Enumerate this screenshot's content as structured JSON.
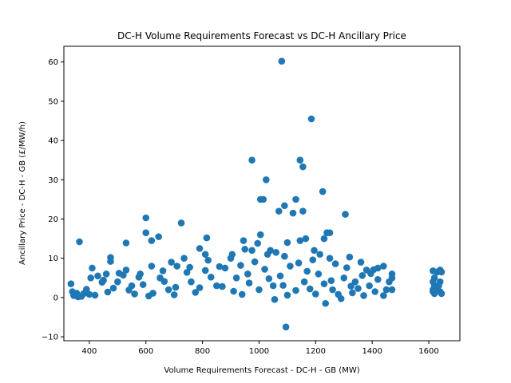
{
  "chart_data": {
    "type": "scatter",
    "title": "DC-H Volume Requirements Forecast vs DC-H Ancillary Price",
    "xlabel": "Volume Requirements Forecast - DC-H - GB (MW)",
    "ylabel": "Ancillary Price - DC-H - GB (£/MW/h)",
    "xlim": [
      310,
      1710
    ],
    "ylim": [
      -11,
      64
    ],
    "x_ticks": [
      400,
      600,
      800,
      1000,
      1200,
      1400,
      1600
    ],
    "y_ticks": [
      -10,
      0,
      10,
      20,
      30,
      40,
      50,
      60
    ],
    "x_tick_labels": [
      "400",
      "600",
      "800",
      "1000",
      "1200",
      "1400",
      "1600"
    ],
    "y_tick_labels": [
      "−10",
      "0",
      "10",
      "20",
      "30",
      "40",
      "50",
      "60"
    ],
    "grid": false,
    "marker_color": "#1f77b4",
    "points": [
      [
        1080,
        60.2
      ],
      [
        1185,
        45.5
      ],
      [
        975,
        35
      ],
      [
        1145,
        35
      ],
      [
        1155,
        33.3
      ],
      [
        1025,
        30
      ],
      [
        1225,
        27
      ],
      [
        1130,
        25
      ],
      [
        1005,
        25
      ],
      [
        1015,
        25
      ],
      [
        1090,
        23.4
      ],
      [
        1070,
        22
      ],
      [
        1155,
        22
      ],
      [
        1120,
        21.5
      ],
      [
        1305,
        21.2
      ],
      [
        600,
        20.3
      ],
      [
        725,
        19
      ],
      [
        1240,
        16.5
      ],
      [
        1250,
        16.5
      ],
      [
        600,
        16.5
      ],
      [
        1005,
        16
      ],
      [
        645,
        15.5
      ],
      [
        815,
        15.2
      ],
      [
        1165,
        15
      ],
      [
        1230,
        15
      ],
      [
        620,
        14.5
      ],
      [
        945,
        14.5
      ],
      [
        1145,
        14.5
      ],
      [
        1100,
        14
      ],
      [
        365,
        14.2
      ],
      [
        530,
        13.9
      ],
      [
        995,
        13.8
      ],
      [
        790,
        12.5
      ],
      [
        950,
        12.3
      ],
      [
        975,
        12
      ],
      [
        1040,
        12
      ],
      [
        1195,
        12
      ],
      [
        1060,
        11.5
      ],
      [
        810,
        11
      ],
      [
        905,
        11
      ],
      [
        1030,
        11
      ],
      [
        1215,
        11
      ],
      [
        1320,
        10.3
      ],
      [
        475,
        10.2
      ],
      [
        735,
        10
      ],
      [
        900,
        10
      ],
      [
        1090,
        10.5
      ],
      [
        475,
        9.2
      ],
      [
        690,
        9
      ],
      [
        820,
        9.5
      ],
      [
        1250,
        10
      ],
      [
        1360,
        9
      ],
      [
        1440,
        8
      ],
      [
        1420,
        7.5
      ],
      [
        1380,
        7
      ],
      [
        410,
        7.5
      ],
      [
        530,
        7
      ],
      [
        620,
        8
      ],
      [
        710,
        8
      ],
      [
        1470,
        6
      ],
      [
        1470,
        5
      ],
      [
        1460,
        4
      ],
      [
        1470,
        2
      ],
      [
        1440,
        0.5
      ],
      [
        1450,
        2
      ],
      [
        1615,
        6.8
      ],
      [
        1620,
        5
      ],
      [
        1630,
        6.5
      ],
      [
        1640,
        7
      ],
      [
        1645,
        6.5
      ],
      [
        1615,
        4
      ],
      [
        1620,
        3
      ],
      [
        1630,
        2.5
      ],
      [
        1640,
        4
      ],
      [
        1615,
        2
      ],
      [
        1620,
        1
      ],
      [
        1640,
        1.5
      ],
      [
        1645,
        1
      ],
      [
        1635,
        3
      ],
      [
        1615,
        1.5
      ],
      [
        1095,
        -7.5
      ],
      [
        1235,
        -1.5
      ],
      [
        1055,
        -0.5
      ],
      [
        1290,
        -0.3
      ],
      [
        335,
        3.5
      ],
      [
        340,
        1.5
      ],
      [
        345,
        0.5
      ],
      [
        360,
        0.2
      ],
      [
        380,
        1
      ],
      [
        400,
        0.8
      ],
      [
        405,
        5
      ],
      [
        430,
        5.5
      ],
      [
        460,
        6
      ],
      [
        500,
        4
      ],
      [
        550,
        3
      ],
      [
        580,
        6
      ],
      [
        650,
        5
      ],
      [
        680,
        2
      ],
      [
        760,
        4
      ],
      [
        850,
        3
      ],
      [
        880,
        7.5
      ],
      [
        920,
        5
      ],
      [
        960,
        6
      ],
      [
        1000,
        2
      ],
      [
        1050,
        3
      ],
      [
        1110,
        8
      ],
      [
        1160,
        4
      ],
      [
        1210,
        6
      ],
      [
        1260,
        2
      ],
      [
        1300,
        5
      ],
      [
        1340,
        4
      ],
      [
        1390,
        3
      ],
      [
        1410,
        1.5
      ],
      [
        1370,
        0.5
      ],
      [
        1330,
        1.2
      ],
      [
        1280,
        0.8
      ],
      [
        1230,
        3.5
      ],
      [
        1180,
        2.2
      ],
      [
        1130,
        1.8
      ],
      [
        1075,
        5.5
      ],
      [
        1020,
        7.2
      ],
      [
        965,
        3.7
      ],
      [
        910,
        1.6
      ],
      [
        870,
        2.8
      ],
      [
        830,
        5.2
      ],
      [
        775,
        1.3
      ],
      [
        745,
        6.4
      ],
      [
        705,
        2.6
      ],
      [
        665,
        4.1
      ],
      [
        625,
        1.1
      ],
      [
        590,
        3.3
      ],
      [
        560,
        0.9
      ],
      [
        520,
        5.7
      ],
      [
        485,
        2.4
      ],
      [
        445,
        3.9
      ],
      [
        420,
        0.6
      ],
      [
        390,
        2.1
      ],
      [
        355,
        1.1
      ],
      [
        372,
        0.3
      ],
      [
        465,
        1.4
      ],
      [
        540,
        1.9
      ],
      [
        610,
        0.4
      ],
      [
        700,
        0.7
      ],
      [
        790,
        2.5
      ],
      [
        940,
        0.8
      ],
      [
        1100,
        0.6
      ],
      [
        1200,
        0.9
      ],
      [
        1350,
        2.3
      ],
      [
        1420,
        4.6
      ],
      [
        1395,
        6.1
      ],
      [
        1310,
        7.6
      ],
      [
        1270,
        8.6
      ],
      [
        1190,
        9.6
      ],
      [
        1140,
        8.8
      ],
      [
        985,
        9.1
      ],
      [
        935,
        8.2
      ],
      [
        860,
        7.9
      ],
      [
        810,
        6.9
      ],
      [
        755,
        7.7
      ],
      [
        660,
        6.8
      ],
      [
        575,
        5.2
      ],
      [
        505,
        6.2
      ],
      [
        450,
        4.4
      ],
      [
        1035,
        4.8
      ],
      [
        1085,
        3.1
      ],
      [
        1170,
        6.7
      ],
      [
        1255,
        4.3
      ],
      [
        1325,
        2.9
      ],
      [
        1365,
        5.6
      ],
      [
        1405,
        7.1
      ]
    ]
  }
}
